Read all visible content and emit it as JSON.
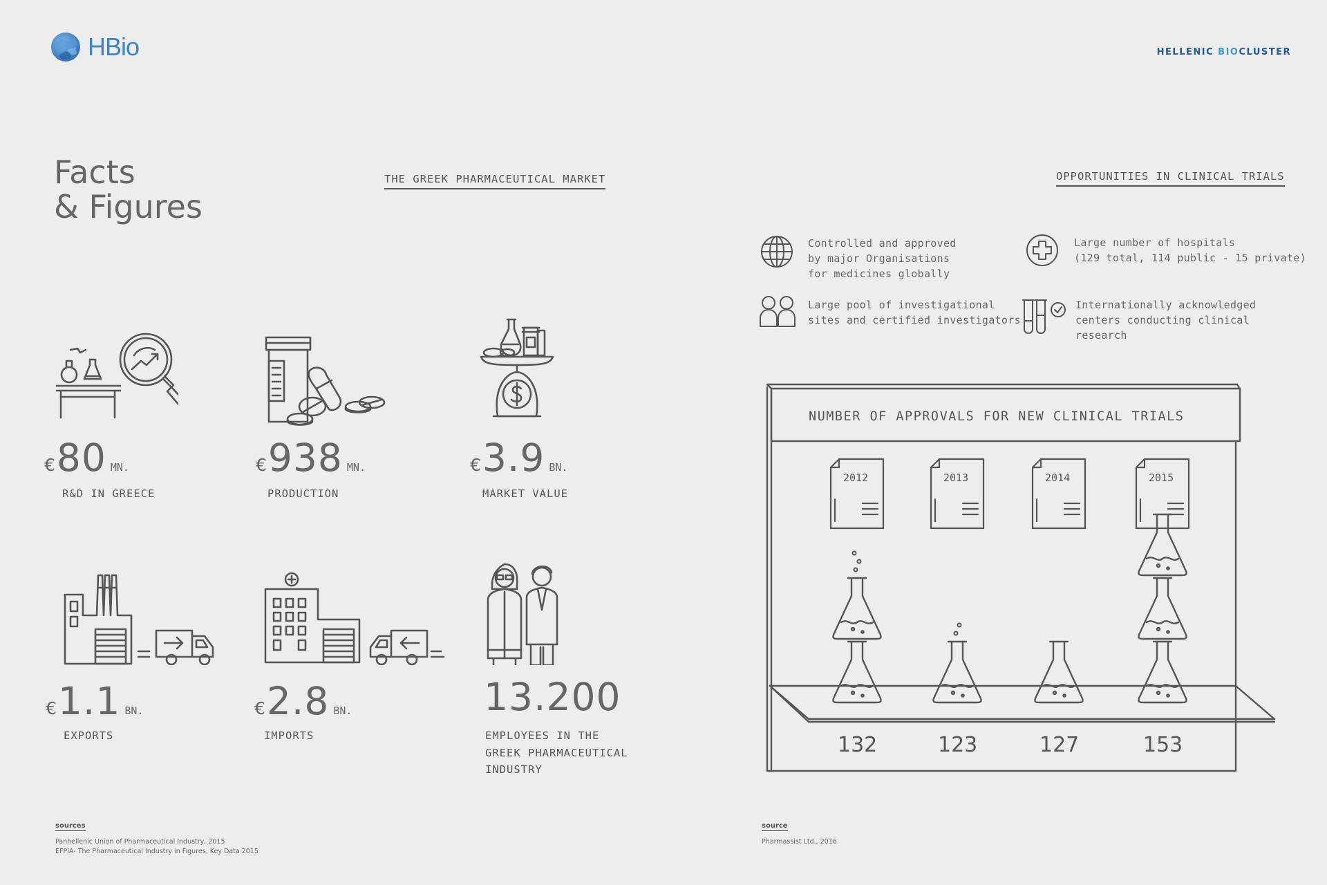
{
  "header": {
    "logo_text": "HBio",
    "brand_prefix": "HELLENIC ",
    "brand_bio": "BIO",
    "brand_suffix": "CLUSTER"
  },
  "title": {
    "line1": "Facts",
    "line2": "& Figures"
  },
  "market": {
    "section_title": "THE GREEK PHARMACEUTICAL MARKET",
    "stats": [
      {
        "currency": "€",
        "value": "80",
        "unit": "MN.",
        "label": "R&D IN GREECE",
        "icon": "research-magnifier-icon"
      },
      {
        "currency": "€",
        "value": "938",
        "unit": "MN.",
        "label": "PRODUCTION",
        "icon": "pills-bottle-icon"
      },
      {
        "currency": "€",
        "value": "3.9",
        "unit": "BN.",
        "label": "MARKET VALUE",
        "icon": "money-scale-icon"
      },
      {
        "currency": "€",
        "value": "1.1",
        "unit": "BN.",
        "label": "EXPORTS",
        "icon": "factory-truck-icon"
      },
      {
        "currency": "€",
        "value": "2.8",
        "unit": "BN.",
        "label": "IMPORTS",
        "icon": "hospital-truck-icon"
      }
    ],
    "employees": {
      "value": "13.200",
      "label_lines": [
        "EMPLOYEES IN THE",
        "GREEK PHARMACEUTICAL",
        "INDUSTRY"
      ],
      "icon": "doctors-icon"
    }
  },
  "clinical": {
    "section_title": "OPPORTUNITIES IN CLINICAL TRIALS",
    "opportunities": [
      {
        "icon": "globe-icon",
        "lines": [
          "Controlled and approved",
          "by major Organisations",
          "for medicines globally"
        ]
      },
      {
        "icon": "hospital-cross-icon",
        "lines": [
          "Large number of hospitals",
          "(129 total, 114 public - 15 private)"
        ]
      },
      {
        "icon": "people-icon",
        "lines": [
          "Large pool of investigational",
          "sites and certified investigators"
        ]
      },
      {
        "icon": "test-tubes-check-icon",
        "lines": [
          "Internationally acknowledged",
          "centers conducting clinical",
          "research"
        ]
      }
    ]
  },
  "chart_data": {
    "type": "bar",
    "title": "NUMBER OF APPROVALS FOR NEW CLINICAL TRIALS",
    "categories": [
      "2012",
      "2013",
      "2014",
      "2015"
    ],
    "values": [
      132,
      123,
      127,
      153
    ],
    "flasks": [
      2,
      1,
      1,
      3
    ]
  },
  "sources_left": {
    "heading": "sources",
    "lines": [
      "Panhellenic Union of Pharmaceutical Industry, 2015",
      "EFPIA- The Pharmaceutical Industry in Figures, Key Data 2015"
    ]
  },
  "sources_right": {
    "heading": "source",
    "lines": [
      "Pharmassist Ltd., 2016"
    ]
  },
  "colors": {
    "background": "#ededed",
    "ink": "#555555",
    "brand_blue": "#1e5aa0",
    "logo_blue": "#3a86c8"
  }
}
